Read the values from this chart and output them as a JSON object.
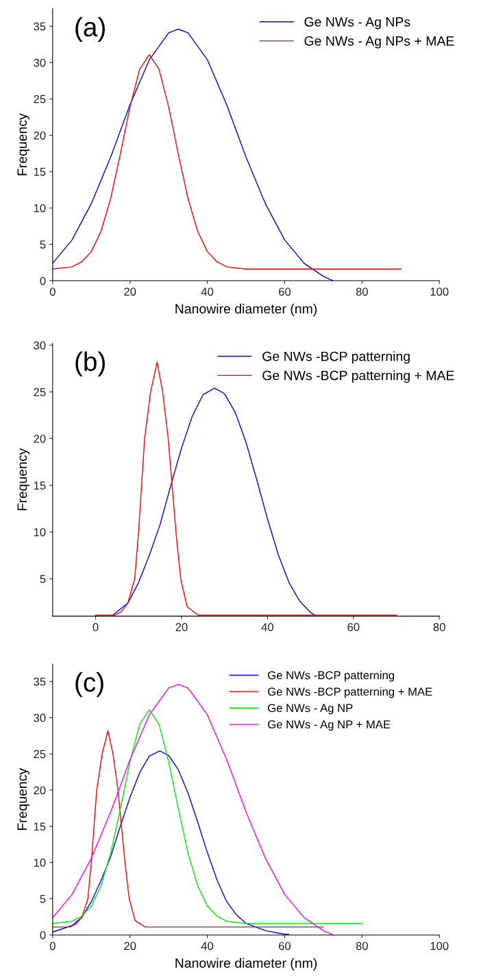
{
  "chart_data": [
    {
      "type": "line",
      "title": "(a)",
      "xlabel": "Nanowire diameter (nm)",
      "ylabel": "Frequency",
      "xlim": [
        0,
        100
      ],
      "xticks": [
        0,
        20,
        40,
        60,
        80,
        100
      ],
      "ylim": [
        0,
        37.4
      ],
      "yticks": [
        0,
        5,
        10,
        15,
        20,
        25,
        30,
        35
      ],
      "legend": "top right",
      "grid": false,
      "series": [
        {
          "name": "Ge NWs - Ag NPs",
          "color": "#0000ff",
          "x": [
            0,
            5,
            10,
            15,
            20,
            25,
            30,
            32.5,
            35,
            40,
            45,
            50,
            55,
            60,
            65,
            70,
            72.5
          ],
          "values": [
            2.4,
            5.6,
            10.6,
            17.0,
            24.2,
            30.4,
            34.1,
            34.6,
            34.1,
            30.4,
            24.2,
            17.0,
            10.6,
            5.6,
            2.4,
            0.6,
            0.0
          ]
        },
        {
          "name": "Ge NWs - Ag NPs + MAE",
          "color": "#ff0000",
          "x": [
            0,
            5,
            7.5,
            10,
            12.5,
            15,
            17.5,
            20,
            22.5,
            25,
            27.5,
            30,
            32.5,
            35,
            37.5,
            40,
            42.5,
            45,
            50,
            90
          ],
          "values": [
            1.6,
            1.9,
            2.6,
            4.0,
            6.8,
            11.3,
            17.4,
            23.9,
            29.1,
            31.1,
            29.1,
            23.9,
            17.4,
            11.3,
            6.8,
            4.0,
            2.6,
            1.9,
            1.6,
            1.6
          ]
        }
      ]
    },
    {
      "type": "line",
      "title": "(b)",
      "ylabel": "Frequency",
      "xlim": [
        -10,
        80
      ],
      "xticks": [
        0,
        20,
        40,
        60,
        80
      ],
      "ylim": [
        1,
        30.2
      ],
      "yticks": [
        5,
        10,
        15,
        20,
        25,
        30
      ],
      "legend": "top right",
      "grid": false,
      "series": [
        {
          "name": "Ge NWs -BCP patterning",
          "color": "#0000ff",
          "x": [
            4,
            7.5,
            10,
            12.5,
            15,
            17.5,
            20,
            22.5,
            25,
            27.7,
            30,
            32.5,
            35,
            37.5,
            40,
            42.5,
            45,
            47.5,
            50,
            51
          ],
          "values": [
            1.1,
            2.4,
            4.6,
            7.5,
            10.8,
            15.0,
            19.0,
            22.4,
            24.7,
            25.4,
            24.8,
            22.8,
            19.6,
            15.6,
            11.4,
            7.6,
            4.6,
            2.6,
            1.4,
            1.1
          ]
        },
        {
          "name": "Ge NWs -BCP patterning + MAE",
          "color": "#ff0000",
          "x": [
            0,
            4.5,
            6,
            7.5,
            9.1,
            10,
            11.4,
            12.8,
            14.3,
            15.6,
            16.9,
            17.8,
            18.7,
            19.8,
            21.3,
            23.9,
            70
          ],
          "values": [
            1.1,
            1.1,
            1.5,
            2.4,
            5,
            10,
            20,
            25,
            28.2,
            25,
            20,
            15,
            10,
            5,
            2,
            1.1,
            1.1
          ]
        }
      ]
    },
    {
      "type": "line",
      "title": "(c)",
      "xlabel": "Nanowire diameter (nm)",
      "ylabel": "Frequency",
      "xlim": [
        0,
        100
      ],
      "xticks": [
        0,
        20,
        40,
        60,
        80,
        100
      ],
      "ylim": [
        0,
        37.4
      ],
      "yticks": [
        0,
        5,
        10,
        15,
        20,
        25,
        30,
        35
      ],
      "legend": "top right",
      "grid": false,
      "series": [
        {
          "name": "Ge NWs -BCP patterning",
          "color": "#0000ff",
          "x": [
            0,
            5,
            7.5,
            10,
            12.5,
            15,
            17.5,
            20,
            22.5,
            25,
            27.7,
            30,
            32.5,
            35,
            37.5,
            40,
            42.5,
            45,
            47.5,
            50,
            55,
            60,
            61
          ],
          "values": [
            0.4,
            1.3,
            2.4,
            4.6,
            7.5,
            10.8,
            15.0,
            19.0,
            22.4,
            24.7,
            25.4,
            24.8,
            22.8,
            19.6,
            15.6,
            11.4,
            7.6,
            4.6,
            2.8,
            1.6,
            0.6,
            0.1,
            0.1
          ]
        },
        {
          "name": "Ge NWs -BCP patterning + MAE",
          "color": "#ff0000",
          "x": [
            0,
            4.5,
            6,
            7.5,
            9.1,
            10,
            11.4,
            12.8,
            14.3,
            15.6,
            16.9,
            17.8,
            18.7,
            19.8,
            21.3,
            23.9,
            70
          ],
          "values": [
            1.1,
            1.1,
            1.5,
            2.4,
            5,
            10,
            20,
            25,
            28.2,
            25,
            20,
            15,
            10,
            5,
            2,
            1.1,
            1.1
          ]
        },
        {
          "name": "Ge NWs - Ag NP",
          "color": "#00ee00",
          "x": [
            0,
            5,
            7.5,
            10,
            12.5,
            15,
            17.5,
            20,
            22.5,
            25,
            27.5,
            30,
            32.5,
            35,
            37.5,
            40,
            42.5,
            45,
            50,
            80
          ],
          "values": [
            1.6,
            1.9,
            2.6,
            4.0,
            6.8,
            11.3,
            17.4,
            23.9,
            29.1,
            31.1,
            29.1,
            23.9,
            17.4,
            11.3,
            6.8,
            4.0,
            2.6,
            1.9,
            1.6,
            1.6
          ]
        },
        {
          "name": "Ge NWs - Ag NP + MAE",
          "color": "#ff00ff",
          "x": [
            0,
            5,
            10,
            15,
            20,
            25,
            30,
            32.5,
            35,
            40,
            45,
            50,
            55,
            60,
            65,
            70,
            72.5
          ],
          "values": [
            2.4,
            5.6,
            10.6,
            17.0,
            24.2,
            30.4,
            34.1,
            34.6,
            34.1,
            30.4,
            24.2,
            17.0,
            10.6,
            5.6,
            2.4,
            0.6,
            0.0
          ]
        }
      ]
    }
  ]
}
